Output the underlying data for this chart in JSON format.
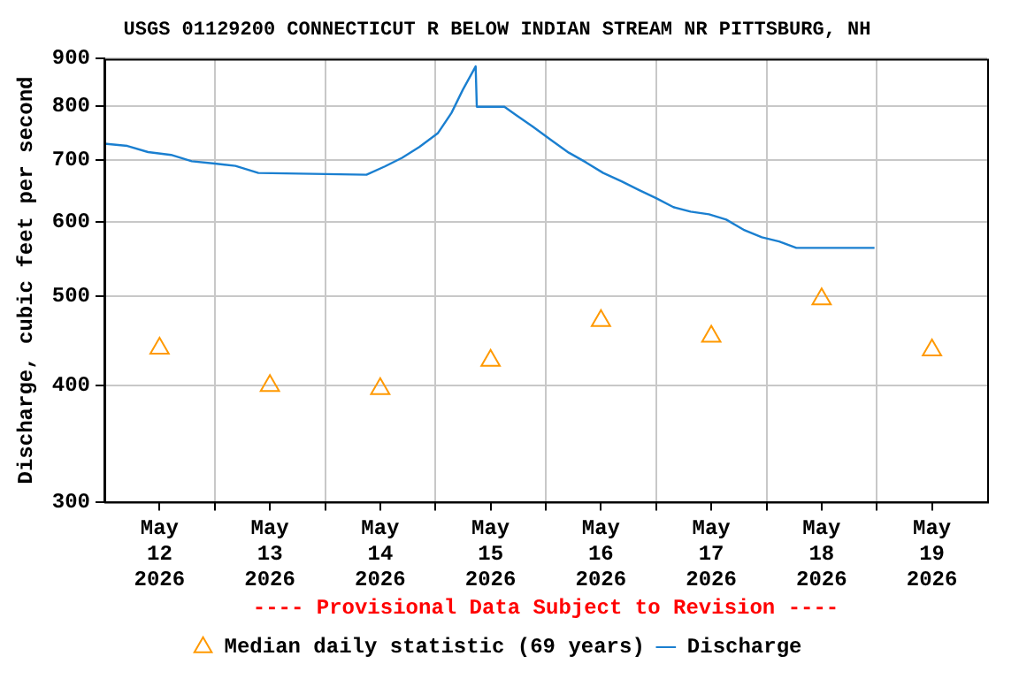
{
  "chart_data": {
    "type": "line",
    "title": "USGS 01129200 CONNECTICUT R BELOW INDIAN STREAM NR PITTSBURG, NH",
    "ylabel": "Discharge, cubic feet per second",
    "log": true,
    "grid": true,
    "legend": "bottom",
    "annotations": [
      "---- Provisional Data Subject to Revision ----"
    ],
    "xlim": [
      "2026-05-12T00:00",
      "2026-05-20T00:00"
    ],
    "xticks": [
      {
        "value": "2026-05-12T12:00",
        "label": "May\n12\n2026"
      },
      {
        "value": "2026-05-13T00:00",
        "label": null
      },
      {
        "value": "2026-05-13T12:00",
        "label": "May\n13\n2026"
      },
      {
        "value": "2026-05-14T00:00",
        "label": null
      },
      {
        "value": "2026-05-14T12:00",
        "label": "May\n14\n2026"
      },
      {
        "value": "2026-05-15T00:00",
        "label": null
      },
      {
        "value": "2026-05-15T12:00",
        "label": "May\n15\n2026"
      },
      {
        "value": "2026-05-16T00:00",
        "label": null
      },
      {
        "value": "2026-05-16T12:00",
        "label": "May\n16\n2026"
      },
      {
        "value": "2026-05-17T00:00",
        "label": null
      },
      {
        "value": "2026-05-17T12:00",
        "label": "May\n17\n2026"
      },
      {
        "value": "2026-05-18T00:00",
        "label": null
      },
      {
        "value": "2026-05-18T12:00",
        "label": "May\n18\n2026"
      },
      {
        "value": "2026-05-19T00:00",
        "label": null
      },
      {
        "value": "2026-05-19T12:00",
        "label": "May\n19\n2026"
      }
    ],
    "ylim": [
      300,
      900
    ],
    "yticks": [
      300,
      400,
      500,
      600,
      700,
      800,
      900
    ],
    "series": [
      {
        "name": "Median daily statistic (69 years)",
        "type": "scatter",
        "marker": "triangle",
        "color": "#ff9900",
        "x": [
          "2026-05-12T12:00",
          "2026-05-13T12:00",
          "2026-05-14T12:00",
          "2026-05-15T12:00",
          "2026-05-16T12:00",
          "2026-05-17T12:00",
          "2026-05-18T12:00",
          "2026-05-19T12:00"
        ],
        "values": [
          439,
          400,
          397,
          426,
          470,
          452,
          496,
          437
        ]
      },
      {
        "name": "Discharge",
        "type": "line",
        "marker": "none",
        "color": "#1a7fd0",
        "x": [
          "2026-05-12T00:00",
          "2026-05-12T05:00",
          "2026-05-12T09:30",
          "2026-05-12T14:30",
          "2026-05-12T19:00",
          "2026-05-13T00:00",
          "2026-05-13T04:30",
          "2026-05-13T09:30",
          "2026-05-14T09:00",
          "2026-05-14T13:00",
          "2026-05-14T16:45",
          "2026-05-14T20:30",
          "2026-05-15T00:30",
          "2026-05-15T03:30",
          "2026-05-15T06:00",
          "2026-05-15T08:45",
          "2026-05-15T09:00",
          "2026-05-15T15:00",
          "2026-05-15T17:30",
          "2026-05-15T21:15",
          "2026-05-16T01:15",
          "2026-05-16T05:00",
          "2026-05-16T08:45",
          "2026-05-16T12:30",
          "2026-05-16T16:30",
          "2026-05-16T20:15",
          "2026-05-17T00:00",
          "2026-05-17T03:45",
          "2026-05-17T07:30",
          "2026-05-17T11:30",
          "2026-05-17T15:15",
          "2026-05-17T19:00",
          "2026-05-17T23:00",
          "2026-05-18T02:45",
          "2026-05-18T06:30",
          "2026-05-18T23:30"
        ],
        "values": [
          729,
          725,
          714,
          709,
          698,
          694,
          690,
          678,
          675,
          689,
          704,
          723,
          748,
          787,
          834,
          883,
          799,
          799,
          783,
          760,
          735,
          713,
          696,
          678,
          664,
          650,
          637,
          623,
          616,
          612,
          604,
          589,
          578,
          572,
          563,
          563
        ]
      }
    ]
  }
}
